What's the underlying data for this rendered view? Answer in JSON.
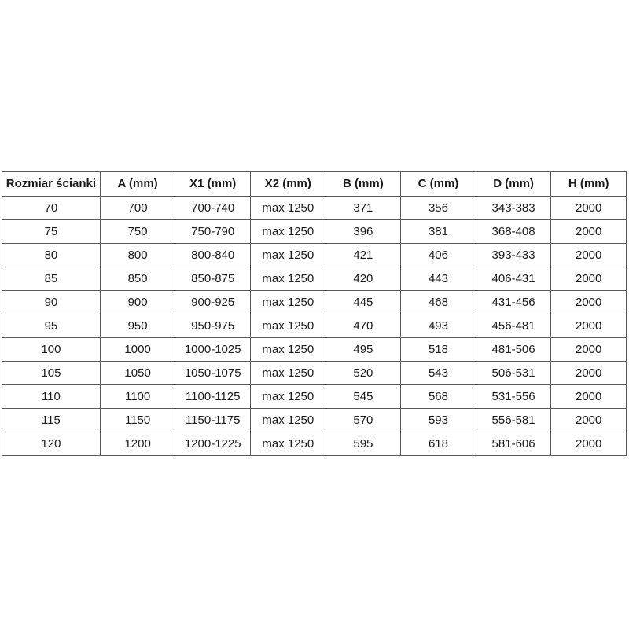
{
  "colors": {
    "page_background": "#ffffff",
    "table_border": "#595959",
    "table_text": "#1a1a1a"
  },
  "chart_data": {
    "type": "table",
    "columns": [
      "Rozmiar ścianki",
      "A (mm)",
      "X1 (mm)",
      "X2 (mm)",
      "B (mm)",
      "C (mm)",
      "D (mm)",
      "H (mm)"
    ],
    "rows": [
      [
        "70",
        "700",
        "700-740",
        "max 1250",
        "371",
        "356",
        "343-383",
        "2000"
      ],
      [
        "75",
        "750",
        "750-790",
        "max 1250",
        "396",
        "381",
        "368-408",
        "2000"
      ],
      [
        "80",
        "800",
        "800-840",
        "max 1250",
        "421",
        "406",
        "393-433",
        "2000"
      ],
      [
        "85",
        "850",
        "850-875",
        "max 1250",
        "420",
        "443",
        "406-431",
        "2000"
      ],
      [
        "90",
        "900",
        "900-925",
        "max 1250",
        "445",
        "468",
        "431-456",
        "2000"
      ],
      [
        "95",
        "950",
        "950-975",
        "max 1250",
        "470",
        "493",
        "456-481",
        "2000"
      ],
      [
        "100",
        "1000",
        "1000-1025",
        "max 1250",
        "495",
        "518",
        "481-506",
        "2000"
      ],
      [
        "105",
        "1050",
        "1050-1075",
        "max 1250",
        "520",
        "543",
        "506-531",
        "2000"
      ],
      [
        "110",
        "1100",
        "1100-1125",
        "max 1250",
        "545",
        "568",
        "531-556",
        "2000"
      ],
      [
        "115",
        "1150",
        "1150-1175",
        "max 1250",
        "570",
        "593",
        "556-581",
        "2000"
      ],
      [
        "120",
        "1200",
        "1200-1225",
        "max 1250",
        "595",
        "618",
        "581-606",
        "2000"
      ]
    ],
    "layout": {
      "grid": true,
      "header_bold": true,
      "cell_align": "center"
    }
  }
}
